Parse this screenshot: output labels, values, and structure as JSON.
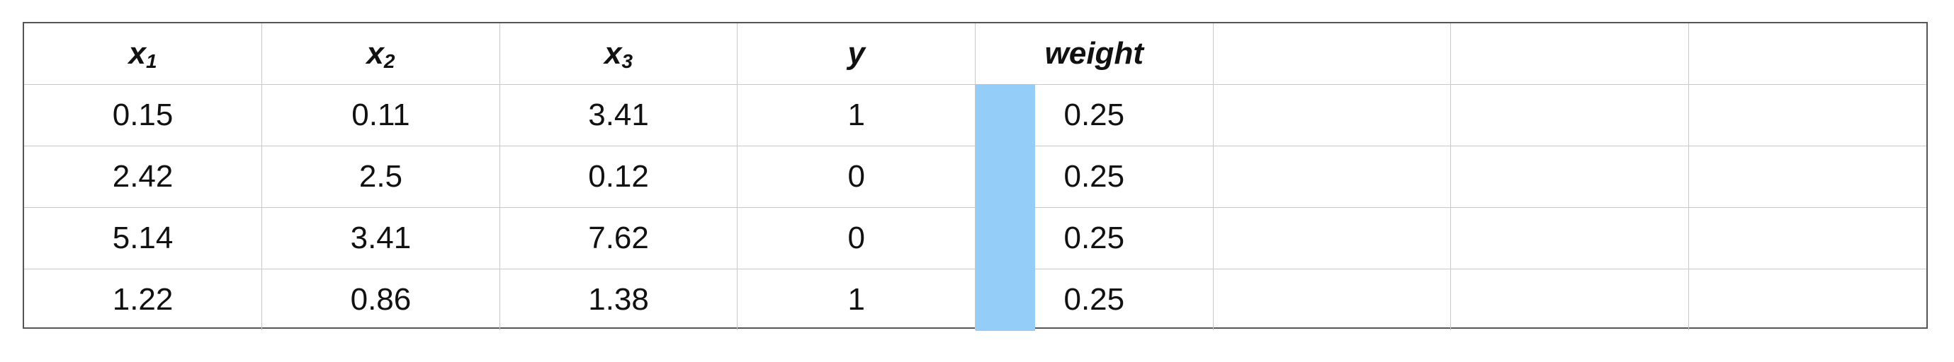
{
  "table": {
    "headers": [
      {
        "base": "x",
        "sub": "1"
      },
      {
        "base": "x",
        "sub": "2"
      },
      {
        "base": "x",
        "sub": "3"
      },
      {
        "base": "y",
        "sub": ""
      },
      {
        "base": "weight",
        "sub": ""
      },
      {
        "base": "",
        "sub": ""
      },
      {
        "base": "",
        "sub": ""
      },
      {
        "base": "",
        "sub": ""
      }
    ],
    "rows": [
      {
        "x1": "0.15",
        "x2": "0.11",
        "x3": "3.41",
        "y": "1",
        "weight": "0.25",
        "weight_fraction": 0.25
      },
      {
        "x1": "2.42",
        "x2": "2.5",
        "x3": "0.12",
        "y": "0",
        "weight": "0.25",
        "weight_fraction": 0.25
      },
      {
        "x1": "5.14",
        "x2": "3.41",
        "x3": "7.62",
        "y": "0",
        "weight": "0.25",
        "weight_fraction": 0.25
      },
      {
        "x1": "1.22",
        "x2": "0.86",
        "x3": "1.38",
        "y": "1",
        "weight": "0.25",
        "weight_fraction": 0.25
      }
    ],
    "weight_bar_color": "#94cef8"
  }
}
